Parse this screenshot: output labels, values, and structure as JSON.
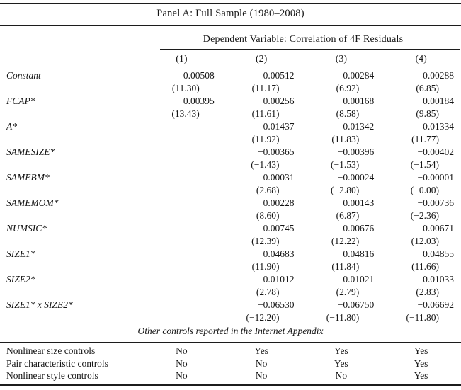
{
  "panel": {
    "title": "Panel A: Full Sample (1980–2008)"
  },
  "header": {
    "dependent_variable": "Dependent Variable: Correlation of 4F Residuals",
    "columns": [
      "(1)",
      "(2)",
      "(3)",
      "(4)"
    ]
  },
  "rows": [
    {
      "label": "Constant",
      "cells": [
        {
          "coef": "0.00508",
          "t": "(11.30)"
        },
        {
          "coef": "0.00512",
          "t": "(11.17)"
        },
        {
          "coef": "0.00284",
          "t": "(6.92)"
        },
        {
          "coef": "0.00288",
          "t": "(6.85)"
        }
      ]
    },
    {
      "label": "FCAP*",
      "cells": [
        {
          "coef": "0.00395",
          "t": "(13.43)"
        },
        {
          "coef": "0.00256",
          "t": "(11.61)"
        },
        {
          "coef": "0.00168",
          "t": "(8.58)"
        },
        {
          "coef": "0.00184",
          "t": "(9.85)"
        }
      ]
    },
    {
      "label": "A*",
      "cells": [
        {
          "coef": "",
          "t": ""
        },
        {
          "coef": "0.01437",
          "t": "(11.92)"
        },
        {
          "coef": "0.01342",
          "t": "(11.83)"
        },
        {
          "coef": "0.01334",
          "t": "(11.77)"
        }
      ]
    },
    {
      "label": "SAMESIZE*",
      "cells": [
        {
          "coef": "",
          "t": ""
        },
        {
          "coef": "−0.00365",
          "t": "(−1.43)"
        },
        {
          "coef": "−0.00396",
          "t": "(−1.53)"
        },
        {
          "coef": "−0.00402",
          "t": "(−1.54)"
        }
      ]
    },
    {
      "label": "SAMEBM*",
      "cells": [
        {
          "coef": "",
          "t": ""
        },
        {
          "coef": "0.00031",
          "t": "(2.68)"
        },
        {
          "coef": "−0.00024",
          "t": "(−2.80)"
        },
        {
          "coef": "−0.00001",
          "t": "(−0.00)"
        }
      ]
    },
    {
      "label": "SAMEMOM*",
      "cells": [
        {
          "coef": "",
          "t": ""
        },
        {
          "coef": "0.00228",
          "t": "(8.60)"
        },
        {
          "coef": "0.00143",
          "t": "(6.87)"
        },
        {
          "coef": "−0.00736",
          "t": "(−2.36)"
        }
      ]
    },
    {
      "label": "NUMSIC*",
      "cells": [
        {
          "coef": "",
          "t": ""
        },
        {
          "coef": "0.00745",
          "t": "(12.39)"
        },
        {
          "coef": "0.00676",
          "t": "(12.22)"
        },
        {
          "coef": "0.00671",
          "t": "(12.03)"
        }
      ]
    },
    {
      "label": "SIZE1*",
      "cells": [
        {
          "coef": "",
          "t": ""
        },
        {
          "coef": "0.04683",
          "t": "(11.90)"
        },
        {
          "coef": "0.04816",
          "t": "(11.84)"
        },
        {
          "coef": "0.04855",
          "t": "(11.66)"
        }
      ]
    },
    {
      "label": "SIZE2*",
      "cells": [
        {
          "coef": "",
          "t": ""
        },
        {
          "coef": "0.01012",
          "t": "(2.78)"
        },
        {
          "coef": "0.01021",
          "t": "(2.79)"
        },
        {
          "coef": "0.01033",
          "t": "(2.83)"
        }
      ]
    },
    {
      "label": "SIZE1* x SIZE2*",
      "cells": [
        {
          "coef": "",
          "t": ""
        },
        {
          "coef": "−0.06530",
          "t": "(−12.20)"
        },
        {
          "coef": "−0.06750",
          "t": "(−11.80)"
        },
        {
          "coef": "−0.06692",
          "t": "(−11.80)"
        }
      ]
    }
  ],
  "note": "Other controls reported in the Internet Appendix",
  "controls": [
    {
      "label": "Nonlinear size controls",
      "values": [
        "No",
        "Yes",
        "Yes",
        "Yes"
      ]
    },
    {
      "label": "Pair characteristic controls",
      "values": [
        "No",
        "No",
        "Yes",
        "Yes"
      ]
    },
    {
      "label": "Nonlinear style controls",
      "values": [
        "No",
        "No",
        "No",
        "Yes"
      ]
    }
  ],
  "colors": {
    "background": "#ffffff",
    "text": "#161616",
    "rule": "#1c1c1c"
  }
}
